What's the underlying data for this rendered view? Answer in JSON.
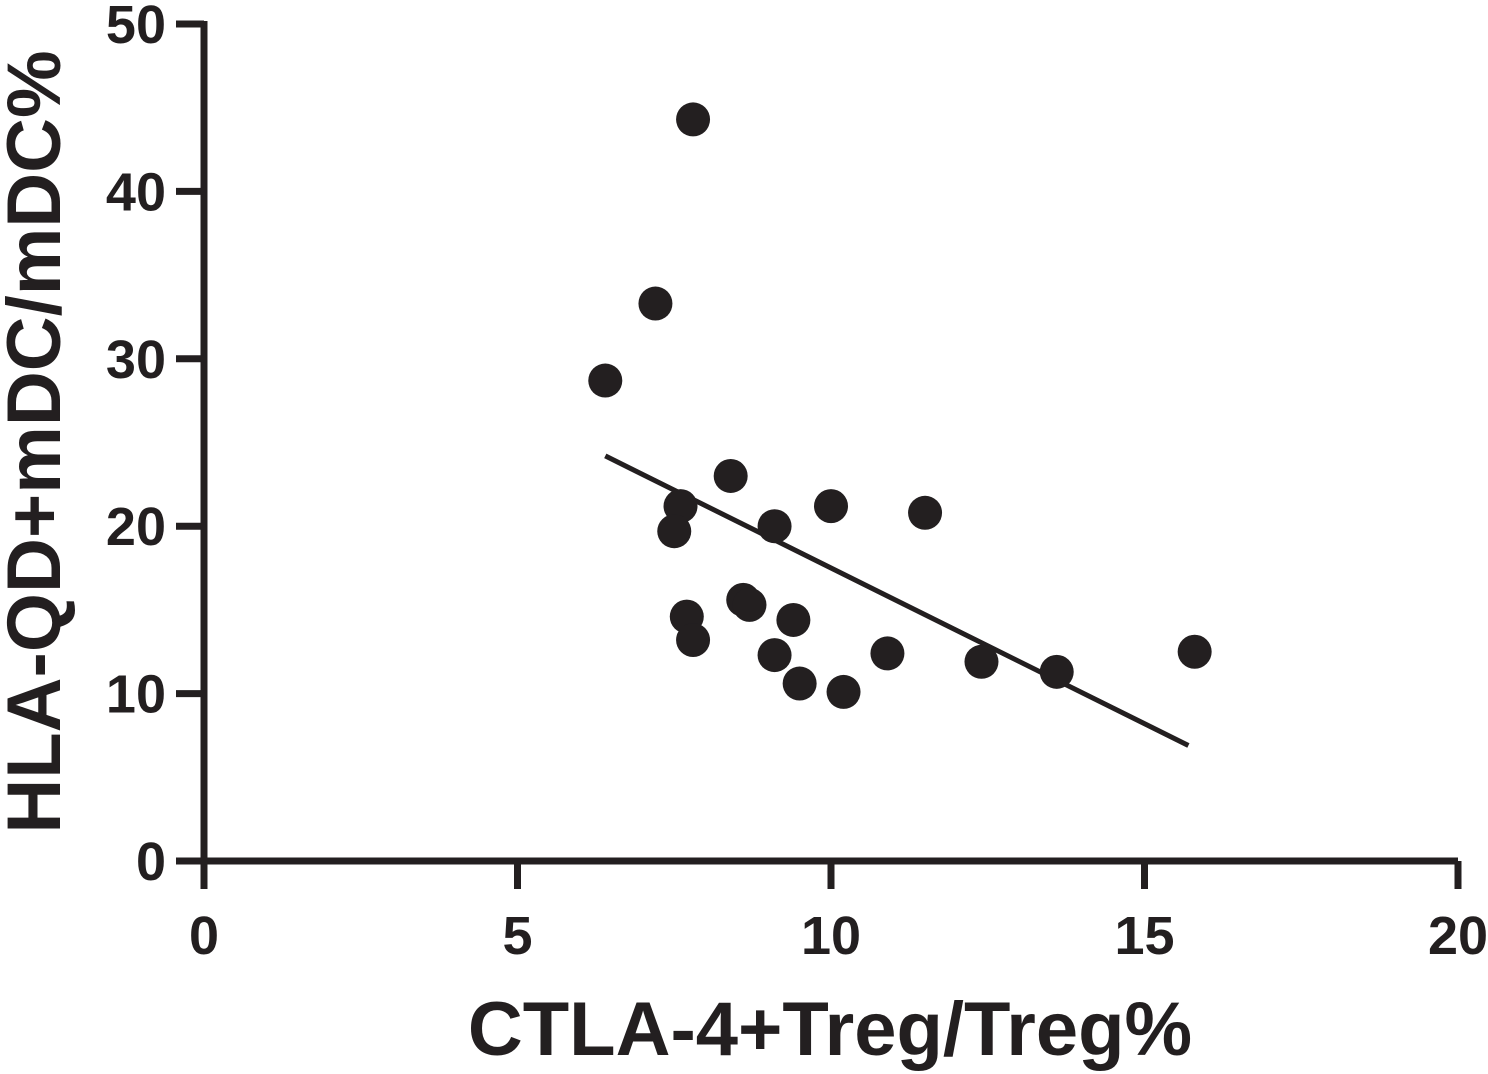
{
  "chart_data": {
    "type": "scatter",
    "xlabel": "CTLA-4+Treg/Treg%",
    "ylabel": "HLA-QD+mDC/mDC%",
    "xlim": [
      0,
      20
    ],
    "ylim": [
      0,
      50
    ],
    "x_ticks": [
      "0",
      "5",
      "10",
      "15",
      "20"
    ],
    "y_ticks": [
      "0",
      "10",
      "20",
      "30",
      "40",
      "50"
    ],
    "grid": false,
    "color": "#231f20",
    "series": [
      {
        "points": [
          {
            "x": 6.4,
            "y": 28.7
          },
          {
            "x": 7.2,
            "y": 33.3
          },
          {
            "x": 7.8,
            "y": 44.3
          },
          {
            "x": 7.6,
            "y": 21.2
          },
          {
            "x": 7.5,
            "y": 19.7
          },
          {
            "x": 7.7,
            "y": 14.6
          },
          {
            "x": 7.8,
            "y": 13.2
          },
          {
            "x": 8.4,
            "y": 23.0
          },
          {
            "x": 8.6,
            "y": 15.6
          },
          {
            "x": 8.7,
            "y": 15.3
          },
          {
            "x": 9.1,
            "y": 20.0
          },
          {
            "x": 9.1,
            "y": 12.3
          },
          {
            "x": 9.4,
            "y": 14.4
          },
          {
            "x": 9.5,
            "y": 10.6
          },
          {
            "x": 10.0,
            "y": 21.2
          },
          {
            "x": 10.2,
            "y": 10.1
          },
          {
            "x": 10.9,
            "y": 12.4
          },
          {
            "x": 11.5,
            "y": 20.8
          },
          {
            "x": 12.4,
            "y": 11.9
          },
          {
            "x": 13.6,
            "y": 11.3
          },
          {
            "x": 15.8,
            "y": 12.5
          }
        ]
      }
    ],
    "trendline": {
      "x": [
        6.4,
        15.7
      ],
      "y": [
        24.2,
        6.9
      ]
    }
  }
}
